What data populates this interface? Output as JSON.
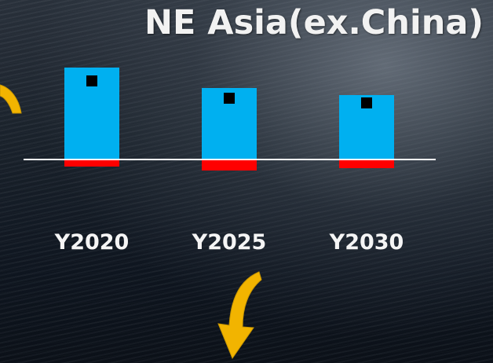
{
  "chart_data": {
    "type": "bar",
    "title": "NE Asia(ex.China)",
    "categories": [
      "Y2020",
      "Y2025",
      "Y2030"
    ],
    "series": [
      {
        "values": [
          117,
          91,
          82
        ]
      },
      {
        "values": [
          -9,
          -14,
          -11
        ]
      }
    ],
    "markers": [
      100,
      78,
      72
    ],
    "ylim": [
      -20,
      125
    ],
    "colors": {
      "positive": "#00b0f0",
      "negative": "#ff0000",
      "marker": "#000000",
      "baseline": "#ffffff",
      "arrow": "#f2b400"
    },
    "grid": false,
    "legend": "none"
  },
  "decorations": {
    "left_arrow_icon": "curved-arrow-icon",
    "down_arrow_icon": "curved-down-arrow-icon"
  }
}
